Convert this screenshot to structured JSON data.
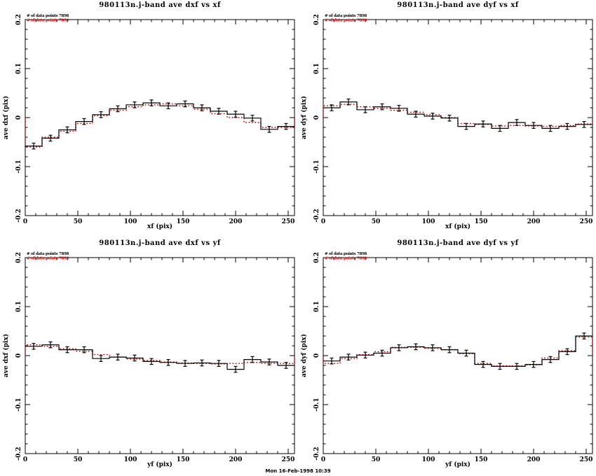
{
  "page": {
    "background": "#ffffff"
  },
  "colors": {
    "frame": "#000000",
    "series_black": "#000000",
    "series_red": "#cc0000"
  },
  "footer": {
    "timestamp": "Mon 16-Feb-1998 10:39"
  },
  "chart_data": [
    {
      "type": "line",
      "subtype": "step-histogram-with-errorbars",
      "title": "980113n.j-band ave dxf vs xf",
      "xlabel": "xf (pix)",
      "ylabel": "ave dxf (pix)",
      "xlim": [
        0,
        256
      ],
      "ylim": [
        -0.2,
        0.2
      ],
      "xticks": [
        0,
        50,
        100,
        150,
        200,
        250
      ],
      "xtick_minor_step": 10,
      "yticks": [
        -0.2,
        -0.1,
        0,
        0.1,
        0.2
      ],
      "ytick_labels": [
        "-0.2",
        "-0.1",
        "0",
        "0.1",
        "0.2"
      ],
      "ytick_minor_step": 0.02,
      "legend": [
        {
          "label": "# of data points 7898",
          "color": "#000000",
          "style": "solid steps + error bars"
        },
        {
          "label": "# of data points 7899",
          "color": "#cc0000",
          "style": "dotted steps"
        }
      ],
      "bins": {
        "start": 0,
        "width": 16,
        "count": 16
      },
      "series": [
        {
          "name": "black-solid",
          "error": 0.006,
          "values": [
            -0.058,
            -0.042,
            -0.025,
            -0.008,
            0.006,
            0.018,
            0.026,
            0.03,
            0.024,
            0.028,
            0.02,
            0.013,
            0.007,
            -0.001,
            -0.024,
            -0.018
          ]
        },
        {
          "name": "red-dotted",
          "values": [
            -0.06,
            -0.04,
            -0.028,
            -0.012,
            0.004,
            0.015,
            0.022,
            0.026,
            0.028,
            0.024,
            0.017,
            0.008,
            0.0,
            -0.01,
            -0.02,
            -0.02
          ]
        }
      ]
    },
    {
      "type": "line",
      "subtype": "step-histogram-with-errorbars",
      "title": "980113n.j-band ave dyf vs xf",
      "xlabel": "xf (pix)",
      "ylabel": "ave dyf (pix)",
      "xlim": [
        0,
        256
      ],
      "ylim": [
        -0.2,
        0.2
      ],
      "xticks": [
        0,
        50,
        100,
        150,
        200,
        250
      ],
      "xtick_minor_step": 10,
      "yticks": [
        -0.2,
        -0.1,
        0,
        0.1,
        0.2
      ],
      "ytick_labels": [
        "-0.2",
        "-0.1",
        "0",
        "0.1",
        "0.2"
      ],
      "ytick_minor_step": 0.02,
      "legend": [
        {
          "label": "# of data points 7898",
          "color": "#000000",
          "style": "solid steps + error bars"
        },
        {
          "label": "# of data points 7899",
          "color": "#cc0000",
          "style": "dotted steps"
        }
      ],
      "bins": {
        "start": 0,
        "width": 16,
        "count": 16
      },
      "series": [
        {
          "name": "black-solid",
          "error": 0.006,
          "values": [
            0.02,
            0.032,
            0.016,
            0.022,
            0.019,
            0.007,
            0.003,
            -0.001,
            -0.018,
            -0.013,
            -0.022,
            -0.01,
            -0.016,
            -0.022,
            -0.018,
            -0.014
          ]
        },
        {
          "name": "red-dotted",
          "values": [
            0.024,
            0.027,
            0.022,
            0.019,
            0.015,
            0.011,
            0.006,
            0.0,
            -0.012,
            -0.014,
            -0.017,
            -0.016,
            -0.017,
            -0.018,
            -0.016,
            -0.013
          ]
        }
      ]
    },
    {
      "type": "line",
      "subtype": "step-histogram-with-errorbars",
      "title": "980113n.j-band ave dxf vs yf",
      "xlabel": "yf (pix)",
      "ylabel": "ave dxf (pix)",
      "xlim": [
        0,
        256
      ],
      "ylim": [
        -0.2,
        0.2
      ],
      "xticks": [
        0,
        50,
        100,
        150,
        200,
        250
      ],
      "xtick_minor_step": 10,
      "yticks": [
        -0.2,
        -0.1,
        0,
        0.1,
        0.2
      ],
      "ytick_labels": [
        "-0.2",
        "-0.1",
        "0",
        "0.1",
        "0.2"
      ],
      "ytick_minor_step": 0.02,
      "legend": [
        {
          "label": "# of data points 7898",
          "color": "#000000",
          "style": "solid steps + error bars"
        },
        {
          "label": "# of data points 7899",
          "color": "#cc0000",
          "style": "dotted steps"
        }
      ],
      "bins": {
        "start": 0,
        "width": 16,
        "count": 16
      },
      "series": [
        {
          "name": "black-solid",
          "error": 0.006,
          "values": [
            0.019,
            0.022,
            0.012,
            0.012,
            -0.006,
            -0.003,
            -0.005,
            -0.012,
            -0.014,
            -0.016,
            -0.015,
            -0.016,
            -0.028,
            -0.008,
            -0.013,
            -0.02
          ]
        },
        {
          "name": "red-dotted",
          "values": [
            0.022,
            0.019,
            0.014,
            0.009,
            0.002,
            -0.003,
            -0.007,
            -0.01,
            -0.013,
            -0.015,
            -0.016,
            -0.017,
            -0.016,
            -0.014,
            -0.016,
            -0.016
          ]
        }
      ]
    },
    {
      "type": "line",
      "subtype": "step-histogram-with-errorbars",
      "title": "980113n.j-band ave dyf vs yf",
      "xlabel": "yf (pix)",
      "ylabel": "ave dyf (pix)",
      "xlim": [
        0,
        256
      ],
      "ylim": [
        -0.2,
        0.2
      ],
      "xticks": [
        0,
        50,
        100,
        150,
        200,
        250
      ],
      "xtick_minor_step": 10,
      "yticks": [
        -0.2,
        -0.1,
        0,
        0.1,
        0.2
      ],
      "ytick_labels": [
        "-0.2",
        "-0.1",
        "0",
        "0.1",
        "0.2"
      ],
      "ytick_minor_step": 0.02,
      "legend": [
        {
          "label": "# of data points 7898",
          "color": "#000000",
          "style": "solid steps + error bars"
        },
        {
          "label": "# of data points 7899",
          "color": "#cc0000",
          "style": "dotted steps"
        }
      ],
      "bins": {
        "start": 0,
        "width": 16,
        "count": 16
      },
      "series": [
        {
          "name": "black-solid",
          "error": 0.006,
          "values": [
            -0.011,
            -0.003,
            0.001,
            0.005,
            0.016,
            0.018,
            0.016,
            0.012,
            0.005,
            -0.018,
            -0.022,
            -0.022,
            -0.018,
            -0.008,
            0.008,
            0.04
          ]
        },
        {
          "name": "red-dotted",
          "values": [
            -0.016,
            -0.006,
            0.002,
            0.008,
            0.017,
            0.017,
            0.015,
            0.012,
            0.004,
            -0.016,
            -0.021,
            -0.021,
            -0.019,
            -0.005,
            0.01,
            0.038
          ]
        }
      ]
    }
  ]
}
